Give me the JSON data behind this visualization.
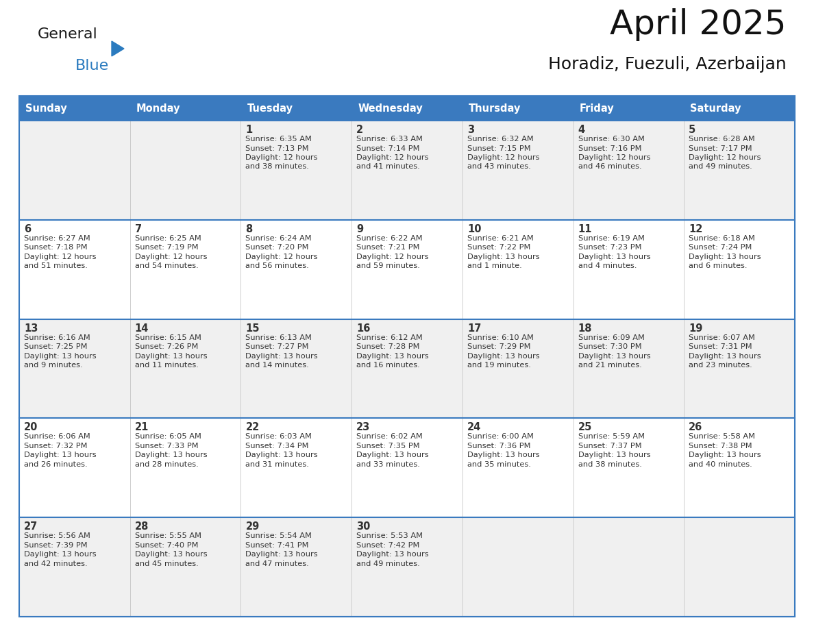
{
  "title": "April 2025",
  "subtitle": "Horadiz, Fuezuli, Azerbaijan",
  "header_color": "#3a7abf",
  "header_text_color": "#ffffff",
  "cell_bg_odd": "#f0f0f0",
  "cell_bg_even": "#ffffff",
  "border_color": "#3a7abf",
  "text_color": "#333333",
  "logo_black": "#1a1a1a",
  "logo_blue": "#2b7bbf",
  "days_of_week": [
    "Sunday",
    "Monday",
    "Tuesday",
    "Wednesday",
    "Thursday",
    "Friday",
    "Saturday"
  ],
  "weeks": [
    [
      {
        "day": "",
        "info": ""
      },
      {
        "day": "",
        "info": ""
      },
      {
        "day": "1",
        "info": "Sunrise: 6:35 AM\nSunset: 7:13 PM\nDaylight: 12 hours\nand 38 minutes."
      },
      {
        "day": "2",
        "info": "Sunrise: 6:33 AM\nSunset: 7:14 PM\nDaylight: 12 hours\nand 41 minutes."
      },
      {
        "day": "3",
        "info": "Sunrise: 6:32 AM\nSunset: 7:15 PM\nDaylight: 12 hours\nand 43 minutes."
      },
      {
        "day": "4",
        "info": "Sunrise: 6:30 AM\nSunset: 7:16 PM\nDaylight: 12 hours\nand 46 minutes."
      },
      {
        "day": "5",
        "info": "Sunrise: 6:28 AM\nSunset: 7:17 PM\nDaylight: 12 hours\nand 49 minutes."
      }
    ],
    [
      {
        "day": "6",
        "info": "Sunrise: 6:27 AM\nSunset: 7:18 PM\nDaylight: 12 hours\nand 51 minutes."
      },
      {
        "day": "7",
        "info": "Sunrise: 6:25 AM\nSunset: 7:19 PM\nDaylight: 12 hours\nand 54 minutes."
      },
      {
        "day": "8",
        "info": "Sunrise: 6:24 AM\nSunset: 7:20 PM\nDaylight: 12 hours\nand 56 minutes."
      },
      {
        "day": "9",
        "info": "Sunrise: 6:22 AM\nSunset: 7:21 PM\nDaylight: 12 hours\nand 59 minutes."
      },
      {
        "day": "10",
        "info": "Sunrise: 6:21 AM\nSunset: 7:22 PM\nDaylight: 13 hours\nand 1 minute."
      },
      {
        "day": "11",
        "info": "Sunrise: 6:19 AM\nSunset: 7:23 PM\nDaylight: 13 hours\nand 4 minutes."
      },
      {
        "day": "12",
        "info": "Sunrise: 6:18 AM\nSunset: 7:24 PM\nDaylight: 13 hours\nand 6 minutes."
      }
    ],
    [
      {
        "day": "13",
        "info": "Sunrise: 6:16 AM\nSunset: 7:25 PM\nDaylight: 13 hours\nand 9 minutes."
      },
      {
        "day": "14",
        "info": "Sunrise: 6:15 AM\nSunset: 7:26 PM\nDaylight: 13 hours\nand 11 minutes."
      },
      {
        "day": "15",
        "info": "Sunrise: 6:13 AM\nSunset: 7:27 PM\nDaylight: 13 hours\nand 14 minutes."
      },
      {
        "day": "16",
        "info": "Sunrise: 6:12 AM\nSunset: 7:28 PM\nDaylight: 13 hours\nand 16 minutes."
      },
      {
        "day": "17",
        "info": "Sunrise: 6:10 AM\nSunset: 7:29 PM\nDaylight: 13 hours\nand 19 minutes."
      },
      {
        "day": "18",
        "info": "Sunrise: 6:09 AM\nSunset: 7:30 PM\nDaylight: 13 hours\nand 21 minutes."
      },
      {
        "day": "19",
        "info": "Sunrise: 6:07 AM\nSunset: 7:31 PM\nDaylight: 13 hours\nand 23 minutes."
      }
    ],
    [
      {
        "day": "20",
        "info": "Sunrise: 6:06 AM\nSunset: 7:32 PM\nDaylight: 13 hours\nand 26 minutes."
      },
      {
        "day": "21",
        "info": "Sunrise: 6:05 AM\nSunset: 7:33 PM\nDaylight: 13 hours\nand 28 minutes."
      },
      {
        "day": "22",
        "info": "Sunrise: 6:03 AM\nSunset: 7:34 PM\nDaylight: 13 hours\nand 31 minutes."
      },
      {
        "day": "23",
        "info": "Sunrise: 6:02 AM\nSunset: 7:35 PM\nDaylight: 13 hours\nand 33 minutes."
      },
      {
        "day": "24",
        "info": "Sunrise: 6:00 AM\nSunset: 7:36 PM\nDaylight: 13 hours\nand 35 minutes."
      },
      {
        "day": "25",
        "info": "Sunrise: 5:59 AM\nSunset: 7:37 PM\nDaylight: 13 hours\nand 38 minutes."
      },
      {
        "day": "26",
        "info": "Sunrise: 5:58 AM\nSunset: 7:38 PM\nDaylight: 13 hours\nand 40 minutes."
      }
    ],
    [
      {
        "day": "27",
        "info": "Sunrise: 5:56 AM\nSunset: 7:39 PM\nDaylight: 13 hours\nand 42 minutes."
      },
      {
        "day": "28",
        "info": "Sunrise: 5:55 AM\nSunset: 7:40 PM\nDaylight: 13 hours\nand 45 minutes."
      },
      {
        "day": "29",
        "info": "Sunrise: 5:54 AM\nSunset: 7:41 PM\nDaylight: 13 hours\nand 47 minutes."
      },
      {
        "day": "30",
        "info": "Sunrise: 5:53 AM\nSunset: 7:42 PM\nDaylight: 13 hours\nand 49 minutes."
      },
      {
        "day": "",
        "info": ""
      },
      {
        "day": "",
        "info": ""
      },
      {
        "day": "",
        "info": ""
      }
    ]
  ]
}
